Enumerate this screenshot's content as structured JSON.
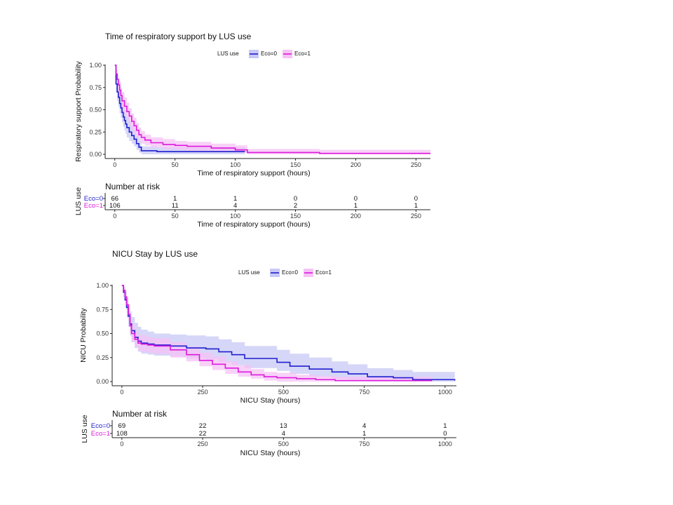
{
  "colors": {
    "eco0": "#1f1fcf",
    "eco1": "#dd19dd",
    "eco0_band": "#c8c8f6",
    "eco1_band": "#f6c2f6"
  },
  "chart_data": [
    {
      "type": "line",
      "subtype": "kaplan-meier step",
      "title": "Time of respiratory support by LUS use",
      "xlabel": "Time of respiratory support (hours)",
      "ylabel": "Respiratory support Probability",
      "xlim": [
        -8,
        262
      ],
      "ylim": [
        0,
        1
      ],
      "x_ticks": [
        0,
        50,
        100,
        150,
        200,
        250
      ],
      "y_ticks": [
        0,
        0.25,
        0.5,
        0.75,
        1
      ],
      "y_tick_labels": [
        "0.00",
        "0.25",
        "0.50",
        "0.75",
        "1.00"
      ],
      "legend": {
        "title": "LUS use",
        "placement": "top",
        "entries": [
          "Eco=0",
          "Eco=1"
        ]
      },
      "series": [
        {
          "name": "Eco=0",
          "x": [
            0,
            1,
            2,
            3,
            4,
            5,
            6,
            7,
            8,
            9,
            10,
            12,
            14,
            16,
            18,
            20,
            22,
            35,
            108
          ],
          "y": [
            1.0,
            0.79,
            0.7,
            0.64,
            0.57,
            0.52,
            0.47,
            0.42,
            0.38,
            0.34,
            0.3,
            0.25,
            0.21,
            0.17,
            0.12,
            0.08,
            0.04,
            0.03,
            0.03
          ],
          "upper": [
            1.0,
            0.88,
            0.8,
            0.75,
            0.69,
            0.64,
            0.59,
            0.54,
            0.5,
            0.46,
            0.42,
            0.37,
            0.32,
            0.27,
            0.21,
            0.15,
            0.09,
            0.08,
            0.08
          ],
          "lower": [
            1.0,
            0.69,
            0.6,
            0.53,
            0.46,
            0.41,
            0.36,
            0.31,
            0.27,
            0.23,
            0.19,
            0.15,
            0.12,
            0.09,
            0.05,
            0.02,
            0.0,
            0.0,
            0.0
          ]
        },
        {
          "name": "Eco=1",
          "x": [
            0,
            1,
            2,
            3,
            4,
            5,
            6,
            8,
            10,
            12,
            14,
            16,
            18,
            20,
            22,
            25,
            30,
            40,
            50,
            60,
            80,
            100,
            110,
            150,
            170,
            262
          ],
          "y": [
            1.0,
            0.9,
            0.84,
            0.78,
            0.72,
            0.66,
            0.6,
            0.54,
            0.48,
            0.43,
            0.37,
            0.32,
            0.27,
            0.22,
            0.19,
            0.16,
            0.13,
            0.11,
            0.1,
            0.09,
            0.07,
            0.05,
            0.02,
            0.02,
            0.01,
            0.01
          ],
          "upper": [
            1.0,
            0.95,
            0.91,
            0.86,
            0.81,
            0.75,
            0.7,
            0.64,
            0.58,
            0.52,
            0.46,
            0.41,
            0.35,
            0.3,
            0.26,
            0.22,
            0.19,
            0.17,
            0.15,
            0.14,
            0.12,
            0.1,
            0.06,
            0.06,
            0.05,
            0.05
          ],
          "lower": [
            1.0,
            0.85,
            0.77,
            0.7,
            0.63,
            0.57,
            0.5,
            0.44,
            0.38,
            0.33,
            0.28,
            0.23,
            0.19,
            0.15,
            0.12,
            0.1,
            0.08,
            0.06,
            0.05,
            0.04,
            0.03,
            0.02,
            0.0,
            0.0,
            0.0,
            0.0
          ]
        }
      ],
      "risk_table": {
        "title": "Number at risk",
        "ylabel": "LUS use",
        "xlabel": "Time of respiratory support (hours)",
        "times": [
          0,
          50,
          100,
          150,
          200,
          250
        ],
        "rows": [
          {
            "name": "Eco=0",
            "counts": [
              "66",
              "1",
              "1",
              "0",
              "0",
              "0"
            ]
          },
          {
            "name": "Eco=1",
            "counts": [
              "106",
              "11",
              "4",
              "2",
              "1",
              "1"
            ]
          }
        ]
      }
    },
    {
      "type": "line",
      "subtype": "kaplan-meier step",
      "title": "NICU Stay by LUS use",
      "xlabel": "NICU Stay (hours)",
      "ylabel": "NICU Probability",
      "xlim": [
        -30,
        1035
      ],
      "ylim": [
        0,
        1
      ],
      "x_ticks": [
        0,
        250,
        500,
        750,
        1000
      ],
      "y_ticks": [
        0,
        0.25,
        0.5,
        0.75,
        1
      ],
      "y_tick_labels": [
        "0.00",
        "0.25",
        "0.50",
        "0.75",
        "1.00"
      ],
      "legend": {
        "title": "LUS use",
        "placement": "top",
        "entries": [
          "Eco=0",
          "Eco=1"
        ]
      },
      "series": [
        {
          "name": "Eco=0",
          "x": [
            0,
            5,
            10,
            15,
            20,
            25,
            30,
            40,
            50,
            60,
            80,
            100,
            150,
            200,
            260,
            300,
            340,
            380,
            420,
            480,
            520,
            580,
            650,
            700,
            760,
            840,
            900,
            1030
          ],
          "y": [
            1.0,
            0.93,
            0.85,
            0.77,
            0.68,
            0.6,
            0.53,
            0.46,
            0.42,
            0.4,
            0.39,
            0.38,
            0.37,
            0.35,
            0.34,
            0.31,
            0.28,
            0.24,
            0.24,
            0.2,
            0.16,
            0.13,
            0.1,
            0.08,
            0.05,
            0.04,
            0.02,
            0.01
          ],
          "upper": [
            1.0,
            0.98,
            0.93,
            0.87,
            0.8,
            0.73,
            0.67,
            0.61,
            0.57,
            0.54,
            0.52,
            0.5,
            0.49,
            0.48,
            0.47,
            0.44,
            0.41,
            0.37,
            0.37,
            0.33,
            0.29,
            0.25,
            0.21,
            0.18,
            0.14,
            0.12,
            0.1,
            0.09
          ],
          "lower": [
            1.0,
            0.88,
            0.77,
            0.67,
            0.57,
            0.48,
            0.41,
            0.35,
            0.31,
            0.29,
            0.28,
            0.27,
            0.26,
            0.24,
            0.23,
            0.2,
            0.17,
            0.14,
            0.14,
            0.11,
            0.08,
            0.05,
            0.03,
            0.02,
            0.0,
            0.0,
            0.0,
            0.0
          ]
        },
        {
          "name": "Eco=1",
          "x": [
            0,
            5,
            10,
            15,
            20,
            25,
            30,
            40,
            50,
            60,
            80,
            100,
            150,
            200,
            240,
            280,
            320,
            360,
            400,
            440,
            480,
            540,
            600,
            660,
            960
          ],
          "y": [
            1.0,
            0.95,
            0.88,
            0.8,
            0.7,
            0.58,
            0.5,
            0.44,
            0.4,
            0.39,
            0.38,
            0.37,
            0.33,
            0.28,
            0.22,
            0.18,
            0.14,
            0.1,
            0.07,
            0.05,
            0.04,
            0.03,
            0.02,
            0.01,
            0.01
          ],
          "upper": [
            1.0,
            0.99,
            0.94,
            0.87,
            0.78,
            0.67,
            0.6,
            0.53,
            0.49,
            0.48,
            0.46,
            0.45,
            0.41,
            0.36,
            0.3,
            0.26,
            0.21,
            0.17,
            0.13,
            0.1,
            0.09,
            0.07,
            0.06,
            0.05,
            0.05
          ],
          "lower": [
            1.0,
            0.91,
            0.82,
            0.73,
            0.62,
            0.5,
            0.42,
            0.36,
            0.32,
            0.31,
            0.3,
            0.29,
            0.25,
            0.21,
            0.16,
            0.12,
            0.08,
            0.05,
            0.03,
            0.01,
            0.0,
            0.0,
            0.0,
            0.0,
            0.0
          ]
        }
      ],
      "risk_table": {
        "title": "Number at risk",
        "ylabel": "LUS use",
        "xlabel": "NICU Stay (hours)",
        "times": [
          0,
          250,
          500,
          750,
          1000
        ],
        "rows": [
          {
            "name": "Eco=0",
            "counts": [
              "69",
              "22",
              "13",
              "4",
              "1"
            ]
          },
          {
            "name": "Eco=1",
            "counts": [
              "108",
              "22",
              "4",
              "1",
              "0"
            ]
          }
        ]
      }
    }
  ]
}
